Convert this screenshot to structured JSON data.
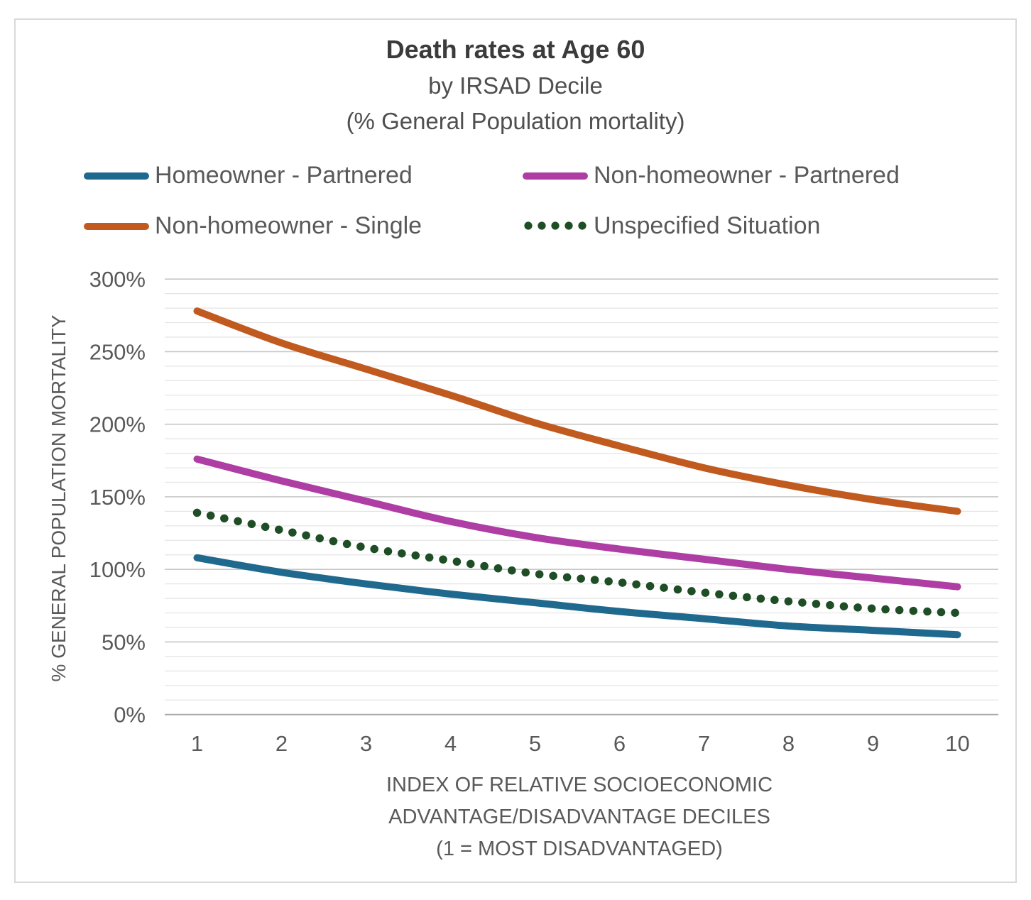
{
  "title": {
    "line1": "Death rates at Age 60",
    "line2": "by IRSAD Decile",
    "line3": "(% General Population mortality)"
  },
  "axes": {
    "y_title": "% GENERAL POPULATION MORTALITY",
    "x_title_line1": "INDEX OF RELATIVE SOCIOECONOMIC",
    "x_title_line2": "ADVANTAGE/DISADVANTAGE DECILES",
    "x_title_line3": "(1 = MOST DISADVANTAGED)"
  },
  "colors": {
    "homeowner_partnered": "#20698e",
    "non_homeowner_partnered": "#ae3da4",
    "non_homeowner_single": "#c05a1f",
    "unspecified": "#1e4d26",
    "text_gray": "#595959",
    "minor_gridline": "#e4e4e4",
    "major_gridline": "#c7c7c7",
    "axis_line": "#ababab"
  },
  "chart_data": {
    "type": "line",
    "title": "Death rates at Age 60 by IRSAD Decile (% General Population mortality)",
    "xlabel": "INDEX OF RELATIVE SOCIOECONOMIC ADVANTAGE/DISADVANTAGE DECILES (1 = MOST DISADVANTAGED)",
    "ylabel": "% GENERAL POPULATION MORTALITY",
    "categories": [
      "1",
      "2",
      "3",
      "4",
      "5",
      "6",
      "7",
      "8",
      "9",
      "10"
    ],
    "y_ticks": [
      "0%",
      "50%",
      "100%",
      "150%",
      "200%",
      "250%",
      "300%"
    ],
    "ylim": [
      0,
      300
    ],
    "minor_grid_step": 10,
    "major_grid_step": 50,
    "grid": "horizontal-only",
    "legend_position": "top",
    "series": [
      {
        "name": "Homeowner - Partnered",
        "color": "#20698e",
        "dotted": false,
        "values": [
          108,
          98,
          90,
          83,
          77,
          71,
          66,
          61,
          58,
          55
        ]
      },
      {
        "name": "Non-homeowner - Partnered",
        "color": "#ae3da4",
        "dotted": false,
        "values": [
          176,
          161,
          147,
          133,
          122,
          114,
          107,
          100,
          94,
          88
        ]
      },
      {
        "name": "Non-homeowner - Single",
        "color": "#c05a1f",
        "dotted": false,
        "values": [
          278,
          256,
          238,
          220,
          201,
          185,
          170,
          158,
          148,
          140
        ]
      },
      {
        "name": "Unspecified Situation",
        "color": "#1e4d26",
        "dotted": true,
        "values": [
          139,
          127,
          115,
          106,
          97,
          91,
          84,
          78,
          73,
          70
        ]
      }
    ],
    "legend_order": [
      0,
      1,
      2,
      3
    ]
  }
}
